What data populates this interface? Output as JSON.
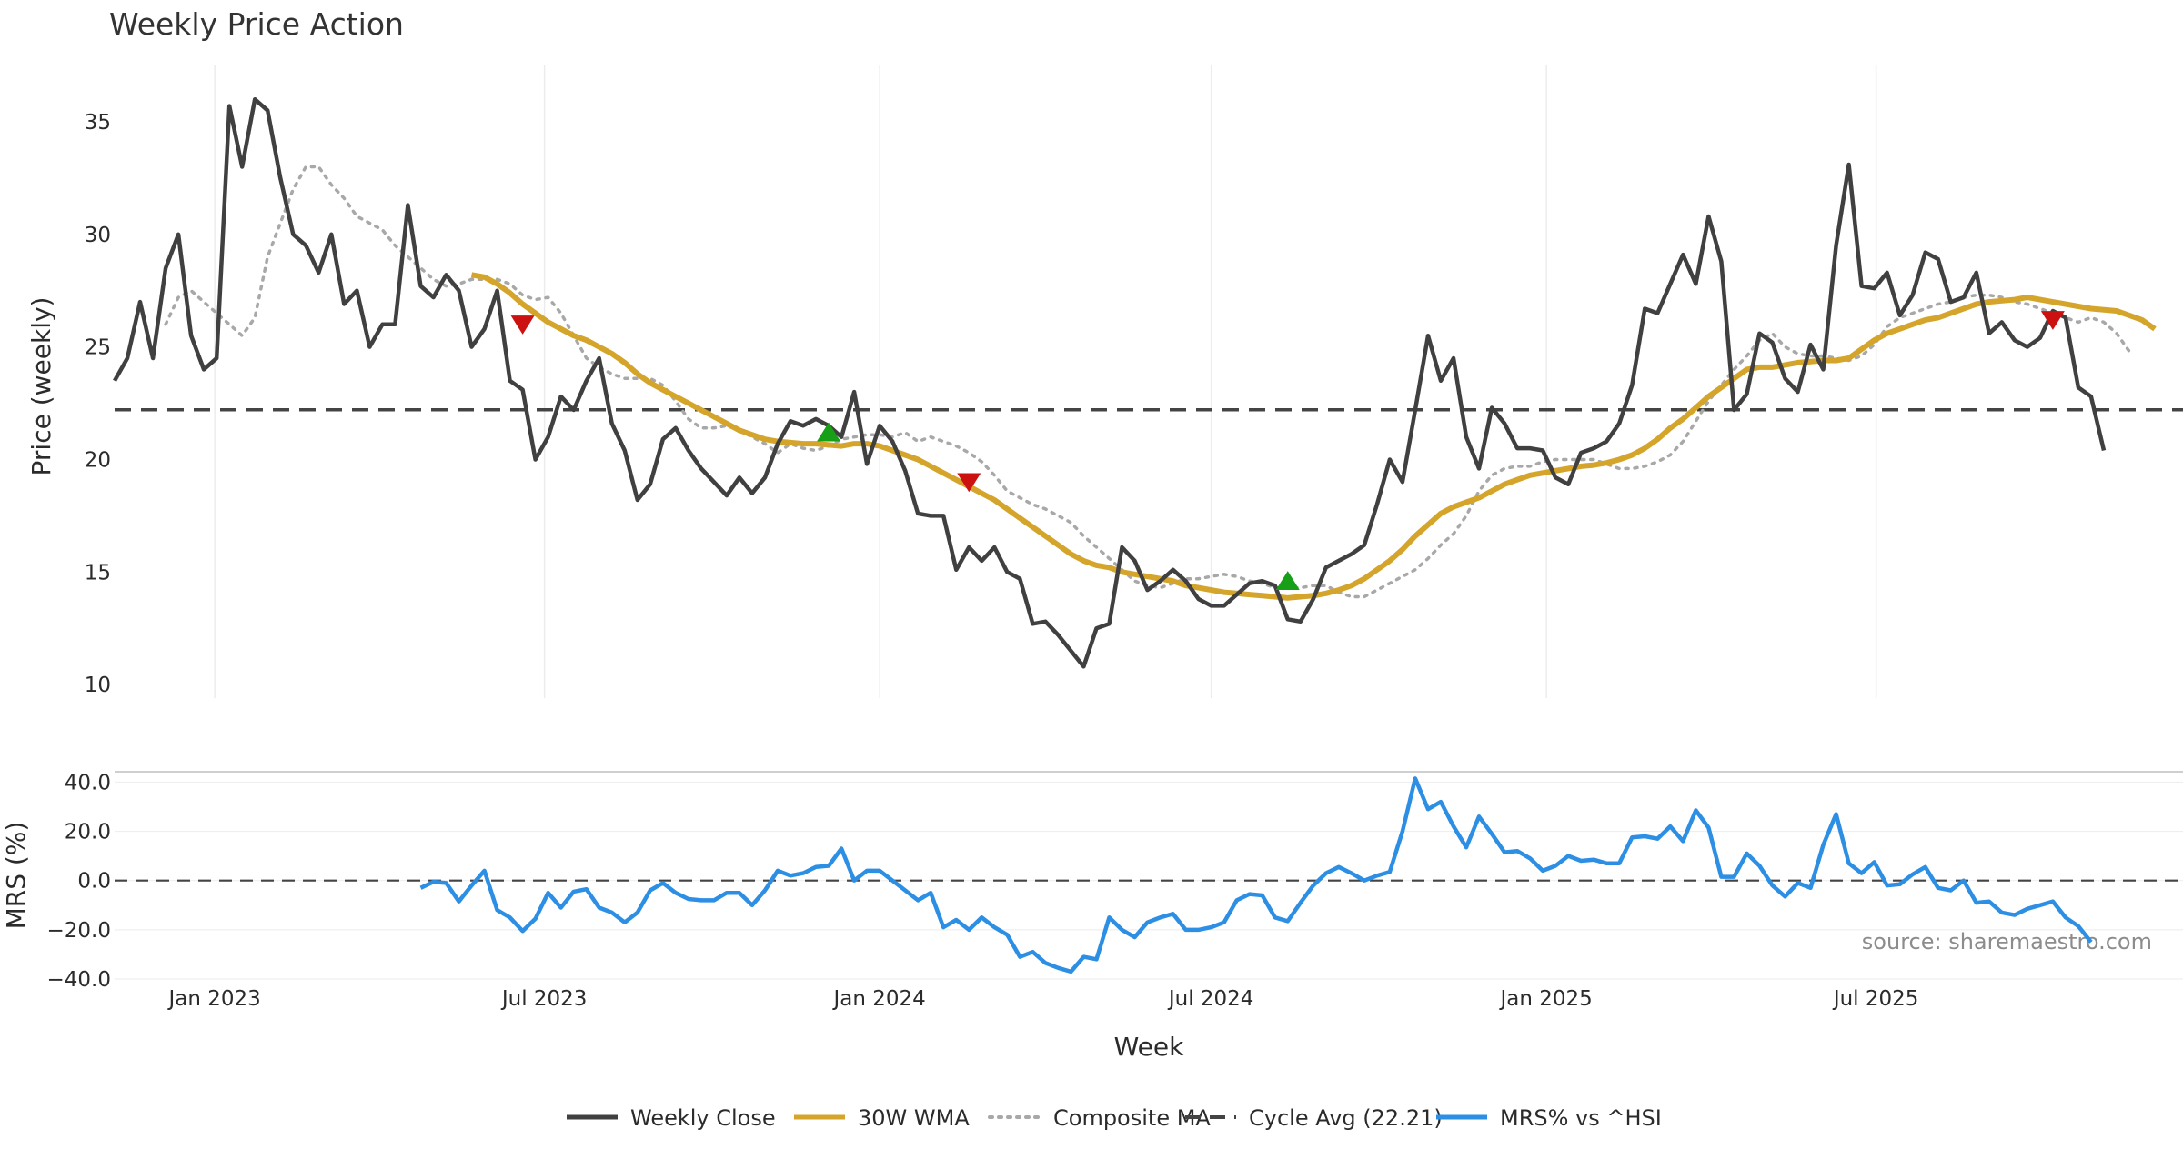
{
  "chart_data": {
    "type": "line",
    "title": "Weekly Price Action",
    "xlabel": "Week",
    "x_ticks": [
      "Jan 2023",
      "Jul 2023",
      "Jan 2024",
      "Jul 2024",
      "Jan 2025",
      "Jul 2025"
    ],
    "x_range": [
      "2022-11-07",
      "2025-11-17"
    ],
    "price_panel": {
      "ylabel": "Price (weekly)",
      "ylim": [
        9.4,
        37.5
      ],
      "yticks": [
        10,
        15,
        20,
        25,
        30,
        35
      ],
      "cycle_avg": 22.21,
      "series": [
        {
          "name": "Weekly Close",
          "color": "#404040",
          "style": "solid",
          "start": "2022-11-07",
          "values": [
            23.5,
            24.5,
            27.0,
            24.5,
            28.5,
            30.0,
            25.5,
            24.0,
            24.5,
            35.7,
            33.0,
            36.0,
            35.5,
            32.5,
            30.0,
            29.5,
            28.3,
            30.0,
            26.9,
            27.5,
            25.0,
            26.0,
            26.0,
            31.3,
            27.7,
            27.2,
            28.2,
            27.5,
            25.0,
            25.8,
            27.5,
            23.5,
            23.1,
            20.0,
            21.0,
            22.8,
            22.2,
            23.5,
            24.5,
            21.6,
            20.4,
            18.2,
            18.9,
            20.9,
            21.4,
            20.4,
            19.6,
            19.0,
            18.4,
            19.2,
            18.5,
            19.2,
            20.7,
            21.7,
            21.5,
            21.8,
            21.5,
            21.0,
            23.0,
            19.8,
            21.5,
            20.8,
            19.5,
            17.6,
            17.5,
            17.5,
            15.1,
            16.1,
            15.5,
            16.1,
            15.0,
            14.7,
            12.7,
            12.8,
            12.2,
            11.5,
            10.8,
            12.5,
            12.7,
            16.1,
            15.5,
            14.2,
            14.6,
            15.1,
            14.6,
            13.8,
            13.5,
            13.5,
            14.0,
            14.5,
            14.6,
            14.4,
            12.9,
            12.8,
            13.8,
            15.2,
            15.5,
            15.8,
            16.2,
            18.0,
            20.0,
            19.0,
            22.2,
            25.5,
            23.5,
            24.5,
            21.0,
            19.6,
            22.3,
            21.6,
            20.5,
            20.5,
            20.4,
            19.2,
            18.9,
            20.3,
            20.5,
            20.8,
            21.6,
            23.3,
            26.7,
            26.5,
            27.8,
            29.1,
            27.8,
            30.8,
            28.8,
            22.2,
            22.9,
            25.6,
            25.2,
            23.6,
            23.0,
            25.1,
            24.0,
            29.5,
            33.1,
            27.7,
            27.6,
            28.3,
            26.4,
            27.3,
            29.2,
            28.9,
            27.0,
            27.2,
            28.3,
            25.6,
            26.1,
            25.3,
            25.0,
            25.4,
            26.6,
            26.3,
            23.2,
            22.8,
            20.4
          ]
        },
        {
          "name": "30W WMA",
          "color": "#d4a52a",
          "style": "solid",
          "start": "2023-05-22",
          "values": [
            28.2,
            28.1,
            27.8,
            27.4,
            26.9,
            26.5,
            26.1,
            25.8,
            25.5,
            25.3,
            25.0,
            24.7,
            24.3,
            23.8,
            23.4,
            23.1,
            22.8,
            22.5,
            22.2,
            21.9,
            21.6,
            21.3,
            21.1,
            20.9,
            20.8,
            20.75,
            20.7,
            20.7,
            20.65,
            20.6,
            20.7,
            20.7,
            20.6,
            20.4,
            20.2,
            20.0,
            19.7,
            19.4,
            19.1,
            18.8,
            18.5,
            18.2,
            17.8,
            17.4,
            17.0,
            16.6,
            16.2,
            15.8,
            15.5,
            15.3,
            15.2,
            15.0,
            14.9,
            14.8,
            14.7,
            14.6,
            14.4,
            14.3,
            14.2,
            14.1,
            14.05,
            14.0,
            13.95,
            13.9,
            13.85,
            13.9,
            13.95,
            14.05,
            14.2,
            14.4,
            14.7,
            15.1,
            15.5,
            16.0,
            16.6,
            17.1,
            17.6,
            17.9,
            18.1,
            18.3,
            18.6,
            18.9,
            19.1,
            19.3,
            19.4,
            19.5,
            19.6,
            19.7,
            19.75,
            19.85,
            20.0,
            20.2,
            20.5,
            20.9,
            21.4,
            21.8,
            22.3,
            22.8,
            23.2,
            23.6,
            24.0,
            24.1,
            24.1,
            24.2,
            24.3,
            24.35,
            24.4,
            24.4,
            24.5,
            24.9,
            25.3,
            25.6,
            25.8,
            26.0,
            26.2,
            26.3,
            26.5,
            26.7,
            26.9,
            27.0,
            27.05,
            27.1,
            27.2,
            27.1,
            27.0,
            26.9,
            26.8,
            26.7,
            26.65,
            26.6,
            26.4,
            26.2,
            25.8
          ]
        },
        {
          "name": "Composite MA",
          "color": "#a8a8a8",
          "style": "dotted",
          "start": "2022-12-05",
          "values": [
            26.0,
            27.2,
            27.5,
            27.0,
            26.5,
            26.0,
            25.5,
            26.3,
            29.0,
            30.5,
            32.0,
            33.0,
            33.0,
            32.2,
            31.6,
            30.8,
            30.5,
            30.2,
            29.5,
            29.0,
            28.5,
            28.0,
            27.7,
            27.8,
            28.0,
            28.0,
            28.0,
            27.8,
            27.3,
            27.1,
            27.2,
            26.5,
            25.5,
            24.5,
            24.1,
            23.8,
            23.6,
            23.6,
            23.6,
            23.3,
            22.6,
            21.8,
            21.4,
            21.4,
            21.5,
            21.3,
            21.0,
            20.7,
            20.3,
            20.7,
            20.5,
            20.4,
            20.6,
            20.9,
            21.0,
            21.1,
            21.1,
            21.0,
            21.2,
            20.8,
            21.0,
            20.8,
            20.6,
            20.3,
            19.9,
            19.3,
            18.6,
            18.3,
            18.0,
            17.8,
            17.5,
            17.2,
            16.6,
            16.1,
            15.6,
            15.1,
            14.6,
            14.4,
            14.3,
            14.5,
            14.7,
            14.7,
            14.8,
            14.9,
            14.8,
            14.6,
            14.5,
            14.3,
            14.3,
            14.3,
            14.4,
            14.4,
            14.1,
            13.9,
            13.9,
            14.2,
            14.5,
            14.8,
            15.1,
            15.6,
            16.2,
            16.7,
            17.5,
            18.6,
            19.3,
            19.6,
            19.7,
            19.7,
            19.9,
            20.0,
            20.0,
            20.0,
            20.0,
            19.8,
            19.6,
            19.6,
            19.7,
            19.9,
            20.2,
            20.8,
            21.7,
            22.6,
            23.3,
            24.0,
            24.6,
            25.3,
            25.6,
            25.0,
            24.7,
            24.6,
            24.6,
            24.5,
            24.4,
            24.6,
            25.1,
            25.9,
            26.3,
            26.5,
            26.7,
            26.9,
            27.0,
            27.2,
            27.3,
            27.3,
            27.2,
            27.0,
            26.9,
            26.7,
            26.5,
            26.3,
            26.1,
            26.3,
            26.1,
            25.6,
            24.8
          ]
        },
        {
          "name": "Cycle Avg (22.21)",
          "color": "#444444",
          "style": "dashed"
        }
      ],
      "markers": [
        {
          "type": "sell",
          "date": "2023-06-19",
          "price": 26.0,
          "color": "#cc1111"
        },
        {
          "type": "buy",
          "date": "2023-12-04",
          "price": 21.2,
          "color": "#17a017"
        },
        {
          "type": "sell",
          "date": "2024-02-19",
          "price": 19.0,
          "color": "#cc1111"
        },
        {
          "type": "buy",
          "date": "2024-08-12",
          "price": 14.6,
          "color": "#17a017"
        },
        {
          "type": "sell",
          "date": "2025-10-06",
          "price": 26.2,
          "color": "#cc1111"
        }
      ]
    },
    "mrs_panel": {
      "ylabel": "MRS (%)",
      "ylim": [
        -40,
        42
      ],
      "yticks": [
        -40,
        -20,
        0,
        20,
        40
      ],
      "ytick_labels": [
        "−40.0",
        "−20.0",
        "0.0",
        "20.0",
        "40.0"
      ],
      "series": [
        {
          "name": "MRS% vs ^HSI",
          "color": "#2d8fe4",
          "start": "2023-04-24",
          "values": [
            -3,
            -0.5,
            -1,
            -8.5,
            -2,
            4,
            -12,
            -15,
            -20.5,
            -15.5,
            -5,
            -11,
            -4.5,
            -3.5,
            -11,
            -13,
            -17,
            -13,
            -4,
            -1,
            -5,
            -7.5,
            -8,
            -8,
            -5,
            -5,
            -10,
            -4,
            4,
            2,
            3,
            5.5,
            6,
            13,
            0,
            4,
            4,
            0,
            -4,
            -8,
            -5,
            -19,
            -16,
            -20,
            -15,
            -19,
            -22,
            -31,
            -29,
            -33.5,
            -35.5,
            -37,
            -31,
            -32,
            -15,
            -20,
            -23,
            -17,
            -15,
            -13.5,
            -20,
            -20,
            -19,
            -17,
            -8,
            -5.5,
            -6,
            -15,
            -16.5,
            -9,
            -2,
            3,
            5.5,
            3,
            0,
            2,
            3.5,
            20,
            41.5,
            29,
            32,
            22,
            13.5,
            26,
            19,
            11.5,
            12,
            9,
            4,
            6,
            10,
            8,
            8.5,
            7,
            7,
            17.5,
            18,
            17,
            22,
            16,
            28.5,
            21.5,
            1.5,
            1.5,
            11,
            6,
            -2,
            -6.5,
            -1,
            -3,
            14.5,
            27,
            7,
            3,
            7.5,
            -2,
            -1.5,
            2.5,
            5.5,
            -3,
            -4,
            0,
            -9,
            -8.5,
            -13,
            -14,
            -11.5,
            -10,
            -8.5,
            -15,
            -18.5,
            -25
          ]
        }
      ],
      "zero_line": 0,
      "source_text": "source: sharemaestro.com"
    },
    "legend": {
      "placement": "bottom-center",
      "entries": [
        {
          "label": "Weekly Close",
          "color": "#404040",
          "style": "solid"
        },
        {
          "label": "30W WMA",
          "color": "#d4a52a",
          "style": "solid"
        },
        {
          "label": "Composite MA",
          "color": "#a8a8a8",
          "style": "dotted"
        },
        {
          "label": "Cycle Avg (22.21)",
          "color": "#444444",
          "style": "dashed"
        },
        {
          "label": "MRS% vs ^HSI",
          "color": "#2d8fe4",
          "style": "solid"
        }
      ]
    },
    "grid": "vertical only"
  }
}
